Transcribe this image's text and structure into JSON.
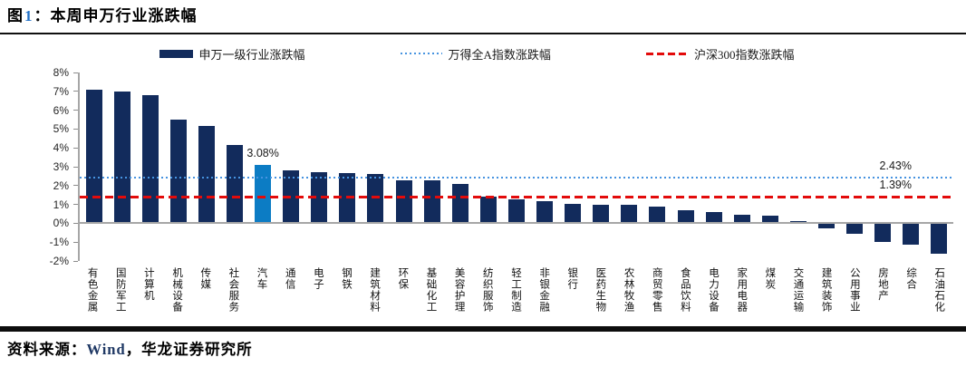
{
  "header": {
    "figure_label": "图",
    "figure_number": "1",
    "figure_title": "：本周申万行业涨跌幅"
  },
  "legend": {
    "items": [
      {
        "label": "申万一级行业涨跌幅",
        "type": "bar",
        "color": "#122B5C"
      },
      {
        "label": "万得全A指数涨跌幅",
        "type": "dotted",
        "color": "#4693E0"
      },
      {
        "label": "沪深300指数涨跌幅",
        "type": "dashed",
        "color": "#E30B0B"
      }
    ]
  },
  "chart_data": {
    "type": "bar",
    "title": "本周申万行业涨跌幅",
    "series_name": "申万一级行业涨跌幅",
    "categories": [
      "有色金属",
      "国防军工",
      "计算机",
      "机械设备",
      "传媒",
      "社会服务",
      "汽车",
      "通信",
      "电子",
      "钢铁",
      "建筑材料",
      "环保",
      "基础化工",
      "美容护理",
      "纺织服饰",
      "轻工制造",
      "非银金融",
      "银行",
      "医药生物",
      "农林牧渔",
      "商贸零售",
      "食品饮料",
      "电力设备",
      "家用电器",
      "煤炭",
      "交通运输",
      "建筑装饰",
      "公用事业",
      "房地产",
      "综合",
      "石油石化"
    ],
    "values": [
      7.1,
      6.98,
      6.78,
      5.48,
      5.18,
      4.15,
      3.08,
      2.8,
      2.73,
      2.68,
      2.63,
      2.28,
      2.26,
      2.1,
      1.4,
      1.28,
      1.16,
      1.05,
      1.0,
      0.96,
      0.88,
      0.7,
      0.59,
      0.44,
      0.42,
      0.12,
      -0.26,
      -0.58,
      -0.98,
      -1.14,
      -1.6
    ],
    "bar_color": "#122B5C",
    "highlight": {
      "index": 6,
      "category": "汽车",
      "label": "3.08%",
      "color": "#0C7CC4"
    },
    "reference_lines": [
      {
        "name": "万得全A指数涨跌幅",
        "value": 2.43,
        "label": "2.43%",
        "style": "dotted",
        "color": "#4693E0"
      },
      {
        "name": "沪深300指数涨跌幅",
        "value": 1.39,
        "label": "1.39%",
        "style": "dashed",
        "color": "#E30B0B"
      }
    ],
    "ylim": [
      -2,
      8
    ],
    "ytick_values": [
      8,
      7,
      6,
      5,
      4,
      3,
      2,
      1,
      0,
      -1,
      -2
    ],
    "ytick_labels": [
      "8%",
      "7%",
      "6%",
      "5%",
      "4%",
      "3%",
      "2%",
      "1%",
      "0%",
      "-1%",
      "-2%"
    ],
    "grid": false,
    "legend_position": "top"
  },
  "footer": {
    "source_prefix": "资料来源：",
    "source_wind": "Wind",
    "source_suffix": "，华龙证券研究所"
  }
}
